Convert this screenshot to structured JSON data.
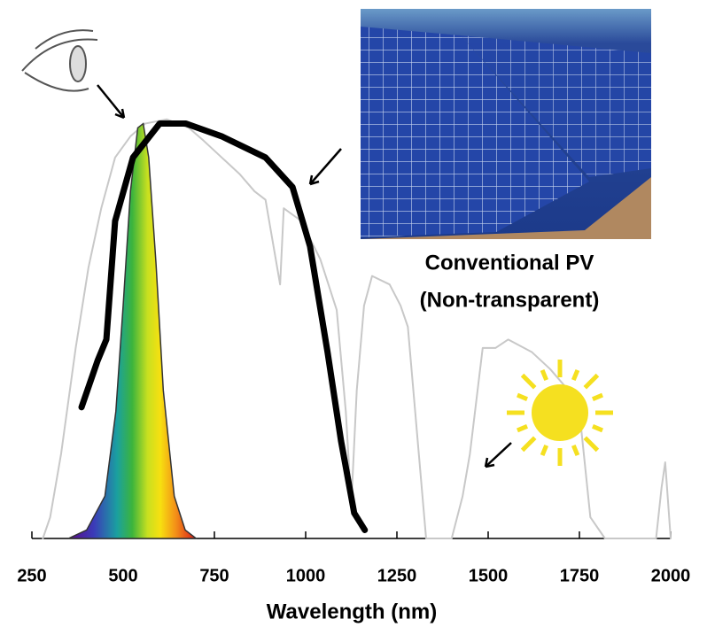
{
  "chart_data": {
    "type": "line",
    "x_label": "Wavelength (nm)",
    "annotations": [
      "Conventional PV",
      "(Non-transparent)"
    ],
    "xlim": [
      250,
      2000
    ],
    "xticks": [
      250,
      500,
      750,
      1000,
      1250,
      1500,
      1750,
      2000
    ],
    "ylim": [
      0,
      1
    ],
    "series": [
      {
        "color": "#c8c8c8",
        "x": [
          280,
          300,
          330,
          370,
          405,
          440,
          478,
          520,
          560,
          620,
          680,
          720,
          770,
          820,
          860,
          890,
          930,
          940,
          988,
          1040,
          1085,
          1110,
          1125,
          1140,
          1160,
          1182,
          1230,
          1260,
          1280,
          1300,
          1330,
          1360,
          1400,
          1430,
          1450,
          1485,
          1520,
          1555,
          1620,
          1670,
          1720,
          1750,
          1780,
          1820,
          1900,
          1960,
          1975,
          1985,
          2000
        ],
        "values": [
          0,
          0.05,
          0.2,
          0.45,
          0.64,
          0.78,
          0.9,
          0.95,
          0.98,
          0.99,
          0.97,
          0.94,
          0.9,
          0.86,
          0.82,
          0.8,
          0.6,
          0.78,
          0.75,
          0.66,
          0.54,
          0.3,
          0.08,
          0.35,
          0.55,
          0.62,
          0.6,
          0.55,
          0.5,
          0.3,
          0,
          0,
          0,
          0.1,
          0.2,
          0.45,
          0.45,
          0.47,
          0.44,
          0.4,
          0.35,
          0.3,
          0.05,
          0,
          0,
          0,
          0.12,
          0.18,
          0
        ]
      },
      {
        "color": "#000000",
        "x": [
          386,
          430,
          454,
          478,
          527,
          600,
          672,
          770,
          890,
          964,
          1012,
          1060,
          1097,
          1133,
          1162
        ],
        "values": [
          0.31,
          0.42,
          0.47,
          0.75,
          0.9,
          0.98,
          0.98,
          0.95,
          0.9,
          0.83,
          0.69,
          0.44,
          0.23,
          0.06,
          0.02
        ]
      },
      {
        "color": "#333333",
        "x": [
          350,
          400,
          450,
          480,
          500,
          520,
          540,
          555,
          570,
          590,
          610,
          640,
          670,
          700
        ],
        "values": [
          0,
          0.02,
          0.1,
          0.3,
          0.55,
          0.82,
          0.97,
          0.98,
          0.9,
          0.65,
          0.35,
          0.1,
          0.02,
          0
        ]
      }
    ]
  }
}
